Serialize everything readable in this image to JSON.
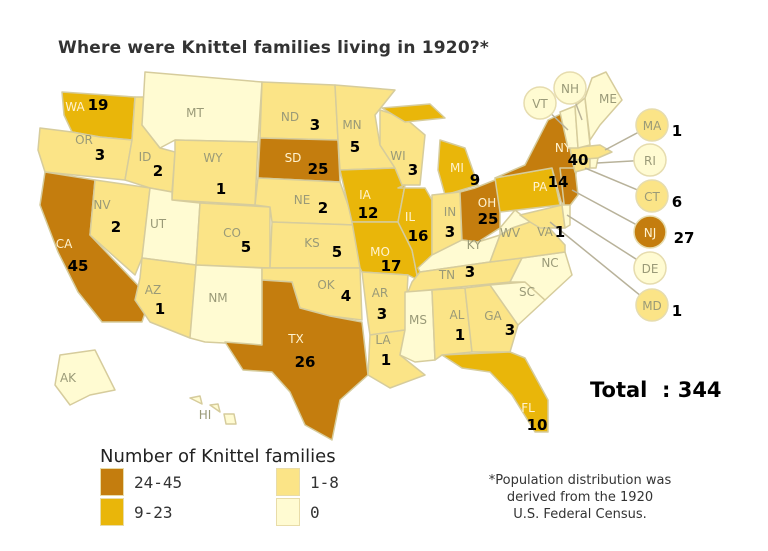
{
  "title": "Where were Knittel families living in 1920?*",
  "total_label": "Total  : 344",
  "legend": {
    "title": "Number of Knittel families",
    "bins": [
      {
        "label": "24-45",
        "color": "#c47d0e"
      },
      {
        "label": "9-23",
        "color": "#e9b60a"
      },
      {
        "label": "1-8",
        "color": "#fbe487"
      },
      {
        "label": "0",
        "color": "#fffbd2"
      }
    ]
  },
  "note": [
    "*Population distribution was",
    "derived from the 1920",
    "U.S. Federal Census."
  ],
  "border_color": "#d6cc9c",
  "states": [
    {
      "abbr": "WA",
      "count": "19",
      "bin": 1
    },
    {
      "abbr": "OR",
      "count": "3",
      "bin": 2
    },
    {
      "abbr": "CA",
      "count": "45",
      "bin": 0
    },
    {
      "abbr": "NV",
      "count": "2",
      "bin": 2
    },
    {
      "abbr": "ID",
      "count": "2",
      "bin": 2
    },
    {
      "abbr": "MT",
      "count": null,
      "bin": 3
    },
    {
      "abbr": "WY",
      "count": "1",
      "bin": 2
    },
    {
      "abbr": "UT",
      "count": null,
      "bin": 3
    },
    {
      "abbr": "CO",
      "count": "5",
      "bin": 2
    },
    {
      "abbr": "AZ",
      "count": "1",
      "bin": 2
    },
    {
      "abbr": "NM",
      "count": null,
      "bin": 3
    },
    {
      "abbr": "ND",
      "count": "3",
      "bin": 2
    },
    {
      "abbr": "SD",
      "count": "25",
      "bin": 0
    },
    {
      "abbr": "NE",
      "count": "2",
      "bin": 2
    },
    {
      "abbr": "KS",
      "count": "5",
      "bin": 2
    },
    {
      "abbr": "OK",
      "count": "4",
      "bin": 2
    },
    {
      "abbr": "TX",
      "count": "26",
      "bin": 0
    },
    {
      "abbr": "MN",
      "count": "5",
      "bin": 2
    },
    {
      "abbr": "IA",
      "count": "12",
      "bin": 1
    },
    {
      "abbr": "MO",
      "count": "17",
      "bin": 1
    },
    {
      "abbr": "AR",
      "count": "3",
      "bin": 2
    },
    {
      "abbr": "LA",
      "count": "1",
      "bin": 2
    },
    {
      "abbr": "WI",
      "count": "3",
      "bin": 2
    },
    {
      "abbr": "IL",
      "count": "16",
      "bin": 1
    },
    {
      "abbr": "MI",
      "count": "9",
      "bin": 1
    },
    {
      "abbr": "IN",
      "count": "3",
      "bin": 2
    },
    {
      "abbr": "OH",
      "count": "25",
      "bin": 0
    },
    {
      "abbr": "KY",
      "count": null,
      "bin": 3
    },
    {
      "abbr": "TN",
      "count": "3",
      "bin": 2
    },
    {
      "abbr": "MS",
      "count": null,
      "bin": 3
    },
    {
      "abbr": "AL",
      "count": "1",
      "bin": 2
    },
    {
      "abbr": "GA",
      "count": "3",
      "bin": 2
    },
    {
      "abbr": "FL",
      "count": "10",
      "bin": 1
    },
    {
      "abbr": "SC",
      "count": null,
      "bin": 3
    },
    {
      "abbr": "NC",
      "count": null,
      "bin": 3
    },
    {
      "abbr": "VA",
      "count": "1",
      "bin": 2
    },
    {
      "abbr": "WV",
      "count": null,
      "bin": 3
    },
    {
      "abbr": "PA",
      "count": "14",
      "bin": 1
    },
    {
      "abbr": "NY",
      "count": "40",
      "bin": 0
    },
    {
      "abbr": "NJ",
      "count": "27",
      "bin": 0
    },
    {
      "abbr": "MD",
      "count": "1",
      "bin": 2
    },
    {
      "abbr": "DE",
      "count": null,
      "bin": 3
    },
    {
      "abbr": "CT",
      "count": "6",
      "bin": 2
    },
    {
      "abbr": "RI",
      "count": null,
      "bin": 3
    },
    {
      "abbr": "MA",
      "count": "1",
      "bin": 2
    },
    {
      "abbr": "VT",
      "count": null,
      "bin": 3
    },
    {
      "abbr": "NH",
      "count": null,
      "bin": 3
    },
    {
      "abbr": "ME",
      "count": null,
      "bin": 3
    },
    {
      "abbr": "AK",
      "count": null,
      "bin": 3
    },
    {
      "abbr": "HI",
      "count": null,
      "bin": 3
    }
  ]
}
